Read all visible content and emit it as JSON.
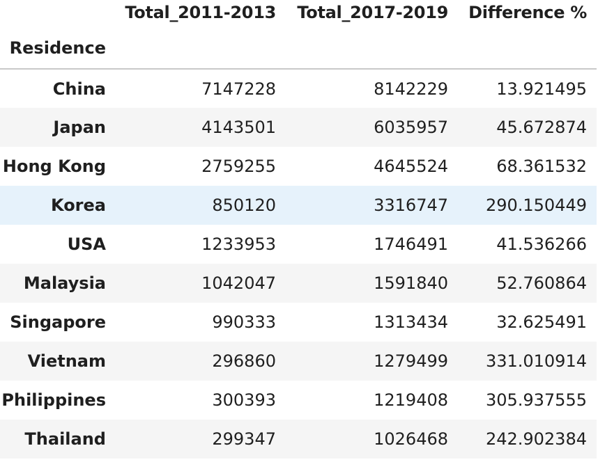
{
  "table": {
    "index_name": "Residence",
    "columns": [
      "Total_2011-2013",
      "Total_2017-2019",
      "Difference %"
    ],
    "rows": [
      {
        "residence": "China",
        "total_2011_2013": "7147228",
        "total_2017_2019": "8142229",
        "difference_pct": "13.921495"
      },
      {
        "residence": "Japan",
        "total_2011_2013": "4143501",
        "total_2017_2019": "6035957",
        "difference_pct": "45.672874"
      },
      {
        "residence": "Hong Kong",
        "total_2011_2013": "2759255",
        "total_2017_2019": "4645524",
        "difference_pct": "68.361532"
      },
      {
        "residence": "Korea",
        "total_2011_2013": "850120",
        "total_2017_2019": "3316747",
        "difference_pct": "290.150449"
      },
      {
        "residence": "USA",
        "total_2011_2013": "1233953",
        "total_2017_2019": "1746491",
        "difference_pct": "41.536266"
      },
      {
        "residence": "Malaysia",
        "total_2011_2013": "1042047",
        "total_2017_2019": "1591840",
        "difference_pct": "52.760864"
      },
      {
        "residence": "Singapore",
        "total_2011_2013": "990333",
        "total_2017_2019": "1313434",
        "difference_pct": "32.625491"
      },
      {
        "residence": "Vietnam",
        "total_2011_2013": "296860",
        "total_2017_2019": "1279499",
        "difference_pct": "331.010914"
      },
      {
        "residence": "Philippines",
        "total_2011_2013": "300393",
        "total_2017_2019": "1219408",
        "difference_pct": "305.937555"
      },
      {
        "residence": "Thailand",
        "total_2011_2013": "299347",
        "total_2017_2019": "1026468",
        "difference_pct": "242.902384"
      }
    ],
    "highlighted_row": "Korea",
    "colors": {
      "striped_row": "#f5f5f5",
      "hover_row": "#e6f2fb",
      "header_rule": "#c9c9c9"
    }
  }
}
